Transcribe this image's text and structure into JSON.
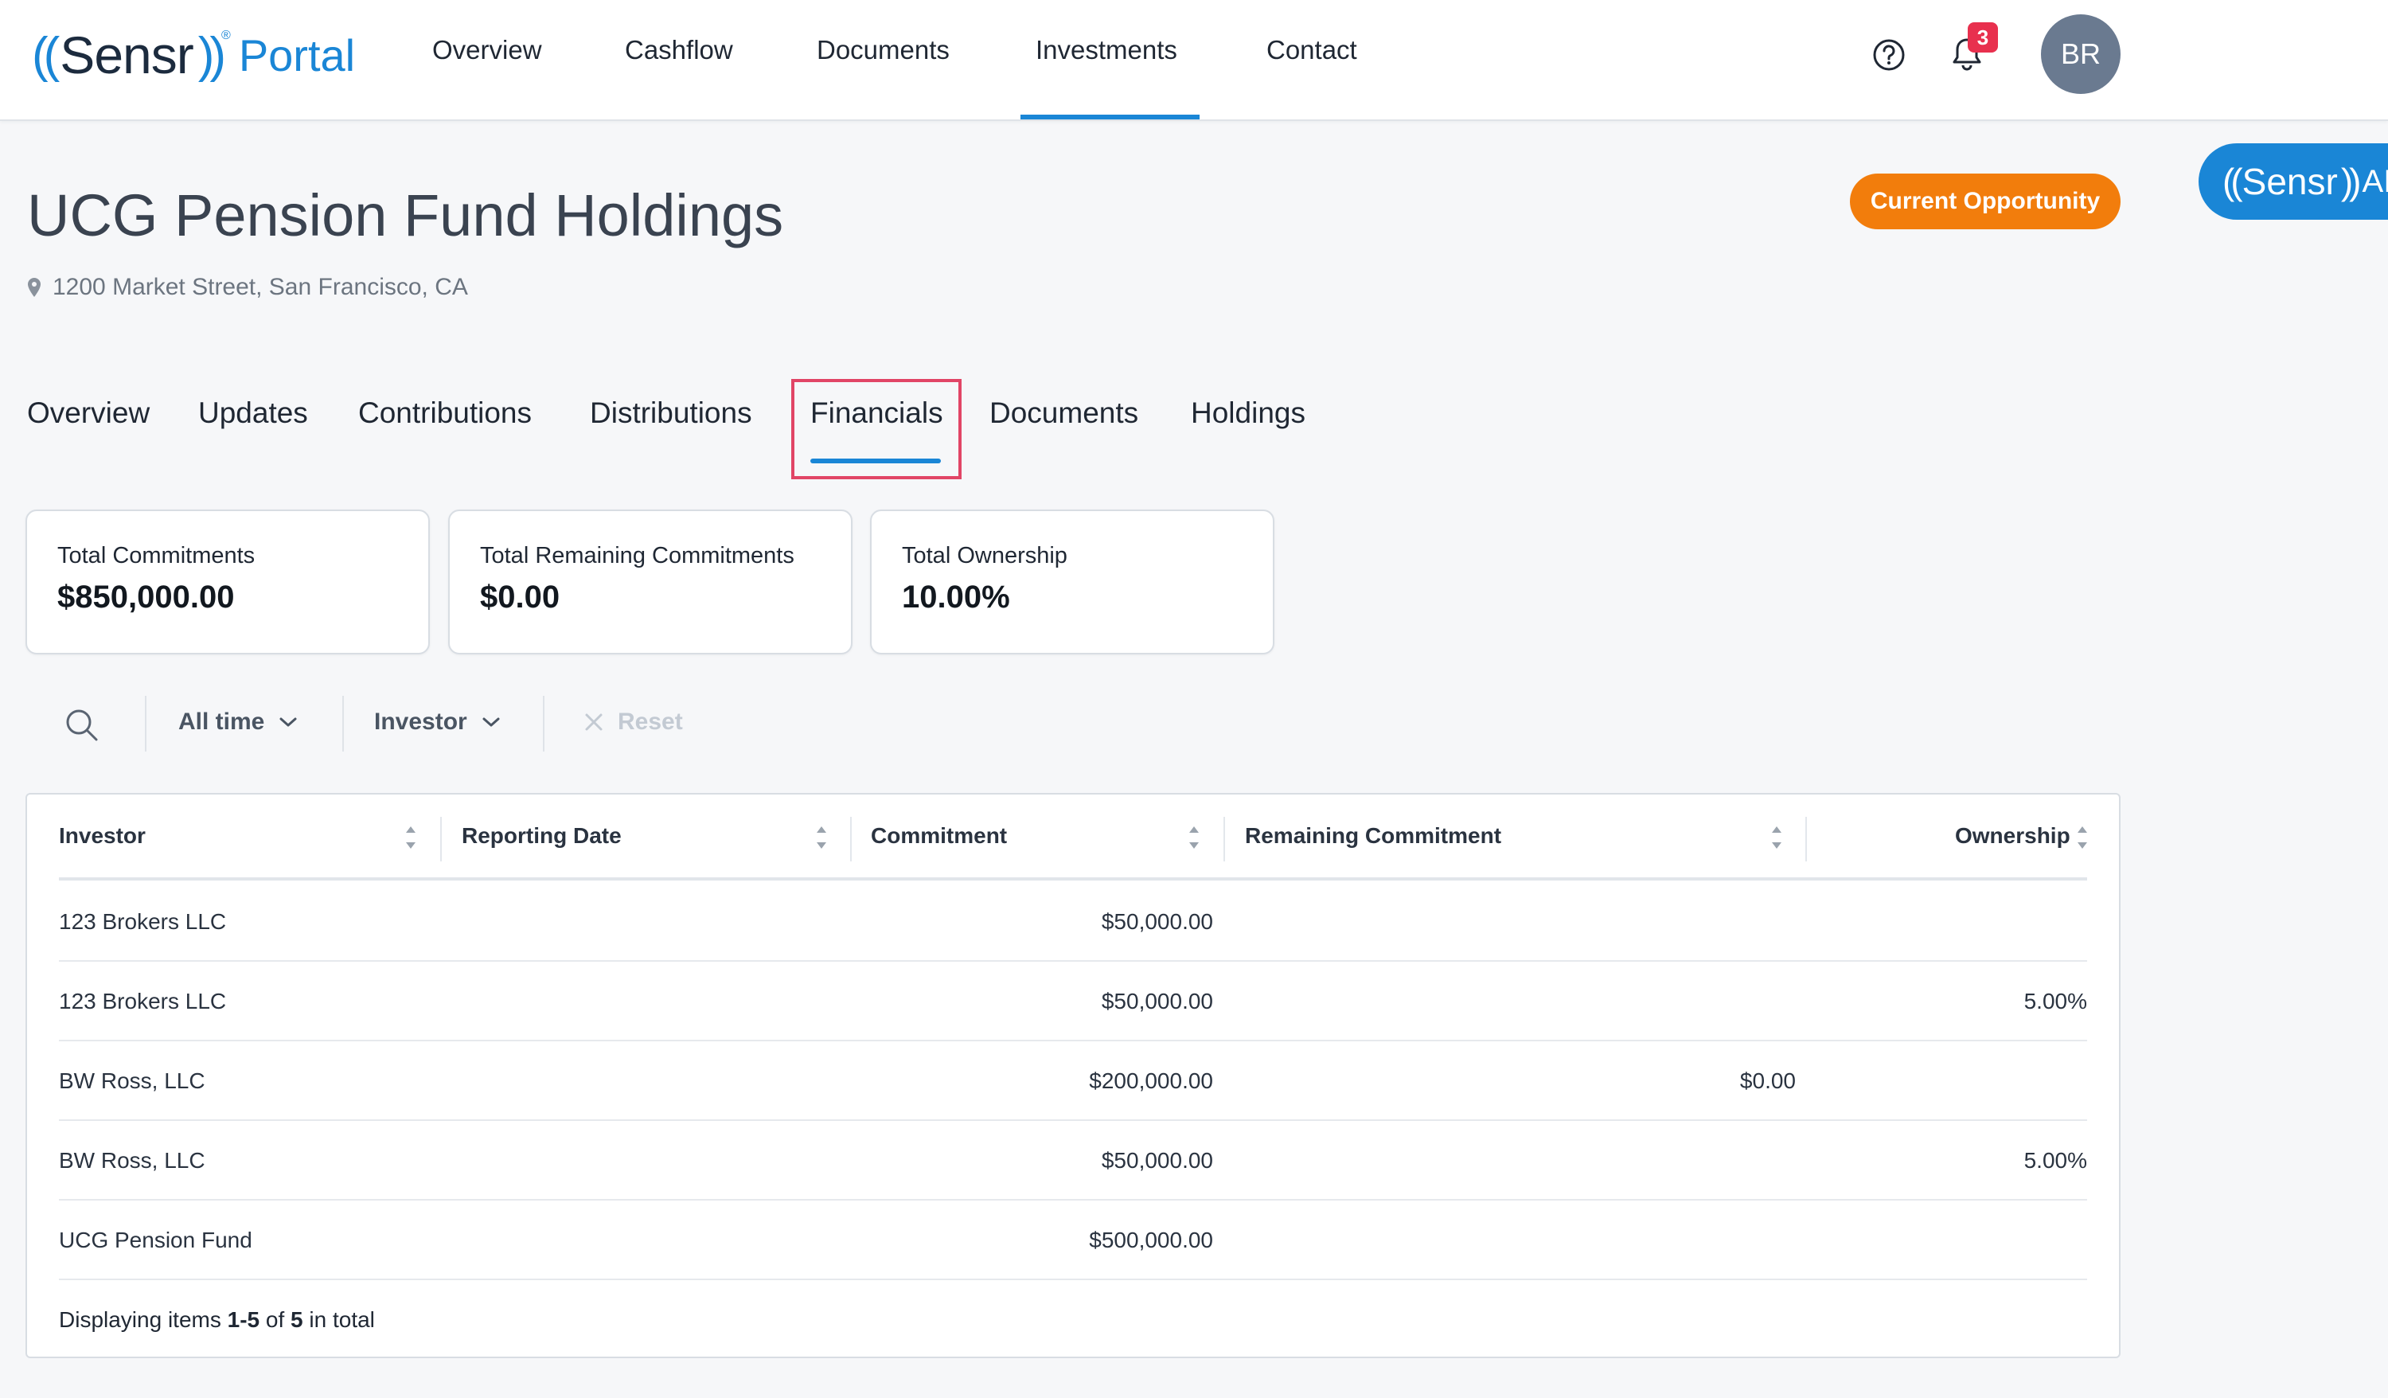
{
  "topnav": {
    "logo": {
      "open": "((",
      "brand": "Sensr",
      "close": "))",
      "reg": "®",
      "product": "Portal"
    },
    "items": [
      {
        "label": "Overview"
      },
      {
        "label": "Cashflow"
      },
      {
        "label": "Documents"
      },
      {
        "label": "Investments"
      },
      {
        "label": "Contact"
      }
    ],
    "active_item": "Investments",
    "help_icon": "help-circle-icon",
    "bell_icon": "bell-icon",
    "notification_count": "3",
    "avatar_initials": "BR"
  },
  "header": {
    "title": "UCG Pension Fund Holdings",
    "address": "1200 Market Street, San Francisco, CA",
    "current_opportunity": "Current Opportunity"
  },
  "sensr_ai": {
    "open": "((",
    "brand": "Sensr",
    "close": "))",
    "ai": "AI"
  },
  "tabs": [
    {
      "label": "Overview"
    },
    {
      "label": "Updates"
    },
    {
      "label": "Contributions"
    },
    {
      "label": "Distributions"
    },
    {
      "label": "Financials"
    },
    {
      "label": "Documents"
    },
    {
      "label": "Holdings"
    }
  ],
  "active_tab": "Financials",
  "stats": [
    {
      "label": "Total Commitments",
      "value": "$850,000.00"
    },
    {
      "label": "Total Remaining Commitments",
      "value": "$0.00"
    },
    {
      "label": "Total Ownership",
      "value": "10.00%"
    }
  ],
  "filters": {
    "time": "All time",
    "investor": "Investor",
    "reset": "Reset"
  },
  "table": {
    "columns": [
      "Investor",
      "Reporting Date",
      "Commitment",
      "Remaining Commitment",
      "Ownership"
    ],
    "rows": [
      {
        "investor": "123 Brokers LLC",
        "reporting_date": "",
        "commitment": "$50,000.00",
        "remaining": "",
        "ownership": ""
      },
      {
        "investor": "123 Brokers LLC",
        "reporting_date": "",
        "commitment": "$50,000.00",
        "remaining": "",
        "ownership": "5.00%"
      },
      {
        "investor": "BW Ross, LLC",
        "reporting_date": "",
        "commitment": "$200,000.00",
        "remaining": "$0.00",
        "ownership": ""
      },
      {
        "investor": "BW Ross, LLC",
        "reporting_date": "",
        "commitment": "$50,000.00",
        "remaining": "",
        "ownership": "5.00%"
      },
      {
        "investor": "UCG Pension Fund",
        "reporting_date": "",
        "commitment": "$500,000.00",
        "remaining": "",
        "ownership": ""
      }
    ],
    "footer": {
      "prefix": "Displaying items ",
      "range": "1-5",
      "of": " of ",
      "total": "5",
      "suffix": " in total"
    }
  },
  "colors": {
    "accent": "#1a86d6",
    "orange": "#f27d0c",
    "badge": "#e8304e",
    "highlight": "#e14566"
  }
}
